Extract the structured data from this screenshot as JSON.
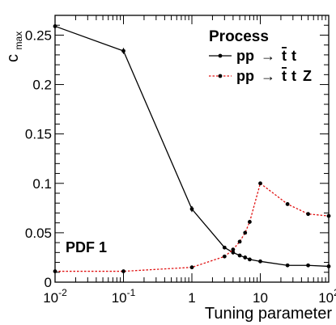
{
  "chart_data": {
    "type": "line",
    "xlabel": "Tuning parameter",
    "ylabel_main": "c",
    "ylabel_sub": "max",
    "x_scale": "log",
    "xlim": [
      0.01,
      100
    ],
    "ylim": [
      0,
      0.27
    ],
    "x_ticks": [
      {
        "base": "10",
        "exp": "-2",
        "value": 0.01
      },
      {
        "base": "10",
        "exp": "-1",
        "value": 0.1
      },
      {
        "base": "1",
        "exp": "",
        "value": 1
      },
      {
        "base": "10",
        "exp": "",
        "value": 10
      },
      {
        "base": "10",
        "exp": "2",
        "value": 100
      }
    ],
    "y_ticks": [
      {
        "label": "0",
        "value": 0
      },
      {
        "label": "0.05",
        "value": 0.05
      },
      {
        "label": "0.1",
        "value": 0.1
      },
      {
        "label": "0.15",
        "value": 0.15
      },
      {
        "label": "0.2",
        "value": 0.2
      },
      {
        "label": "0.25",
        "value": 0.25
      }
    ],
    "grid": false,
    "legend": {
      "title": "Process",
      "placement": "top-right",
      "entries": [
        {
          "prefix": "pp",
          "arrow": "→",
          "t1": "t",
          "t2": "t",
          "suffix": ""
        },
        {
          "prefix": "pp",
          "arrow": "→",
          "t1": "t",
          "t2": "t",
          "suffix": "Z"
        }
      ]
    },
    "annotation": "PDF 1",
    "series": [
      {
        "color": "#000000",
        "dash": "solid",
        "x": [
          0.01,
          0.1,
          1,
          3,
          4,
          5,
          6,
          7,
          10,
          25,
          50,
          100
        ],
        "y": [
          0.259,
          0.234,
          0.074,
          0.035,
          0.03,
          0.027,
          0.025,
          0.023,
          0.021,
          0.017,
          0.017,
          0.016
        ],
        "err": [
          0.002,
          0.003,
          0.003,
          0.001,
          0.002,
          0.001,
          0.002,
          0.001,
          0.001,
          0.001,
          0.001,
          0.001
        ]
      },
      {
        "color": "#e01010",
        "dash": "dotted",
        "x": [
          0.01,
          0.1,
          1,
          3,
          4,
          5,
          6,
          7,
          10,
          25,
          50,
          100
        ],
        "y": [
          0.011,
          0.011,
          0.015,
          0.026,
          0.033,
          0.041,
          0.05,
          0.061,
          0.1,
          0.079,
          0.069,
          0.067
        ],
        "err": [
          0.001,
          0.001,
          0.001,
          0.001,
          0.001,
          0.001,
          0.001,
          0.001,
          0.001,
          0.001,
          0.001,
          0.001
        ]
      }
    ]
  }
}
